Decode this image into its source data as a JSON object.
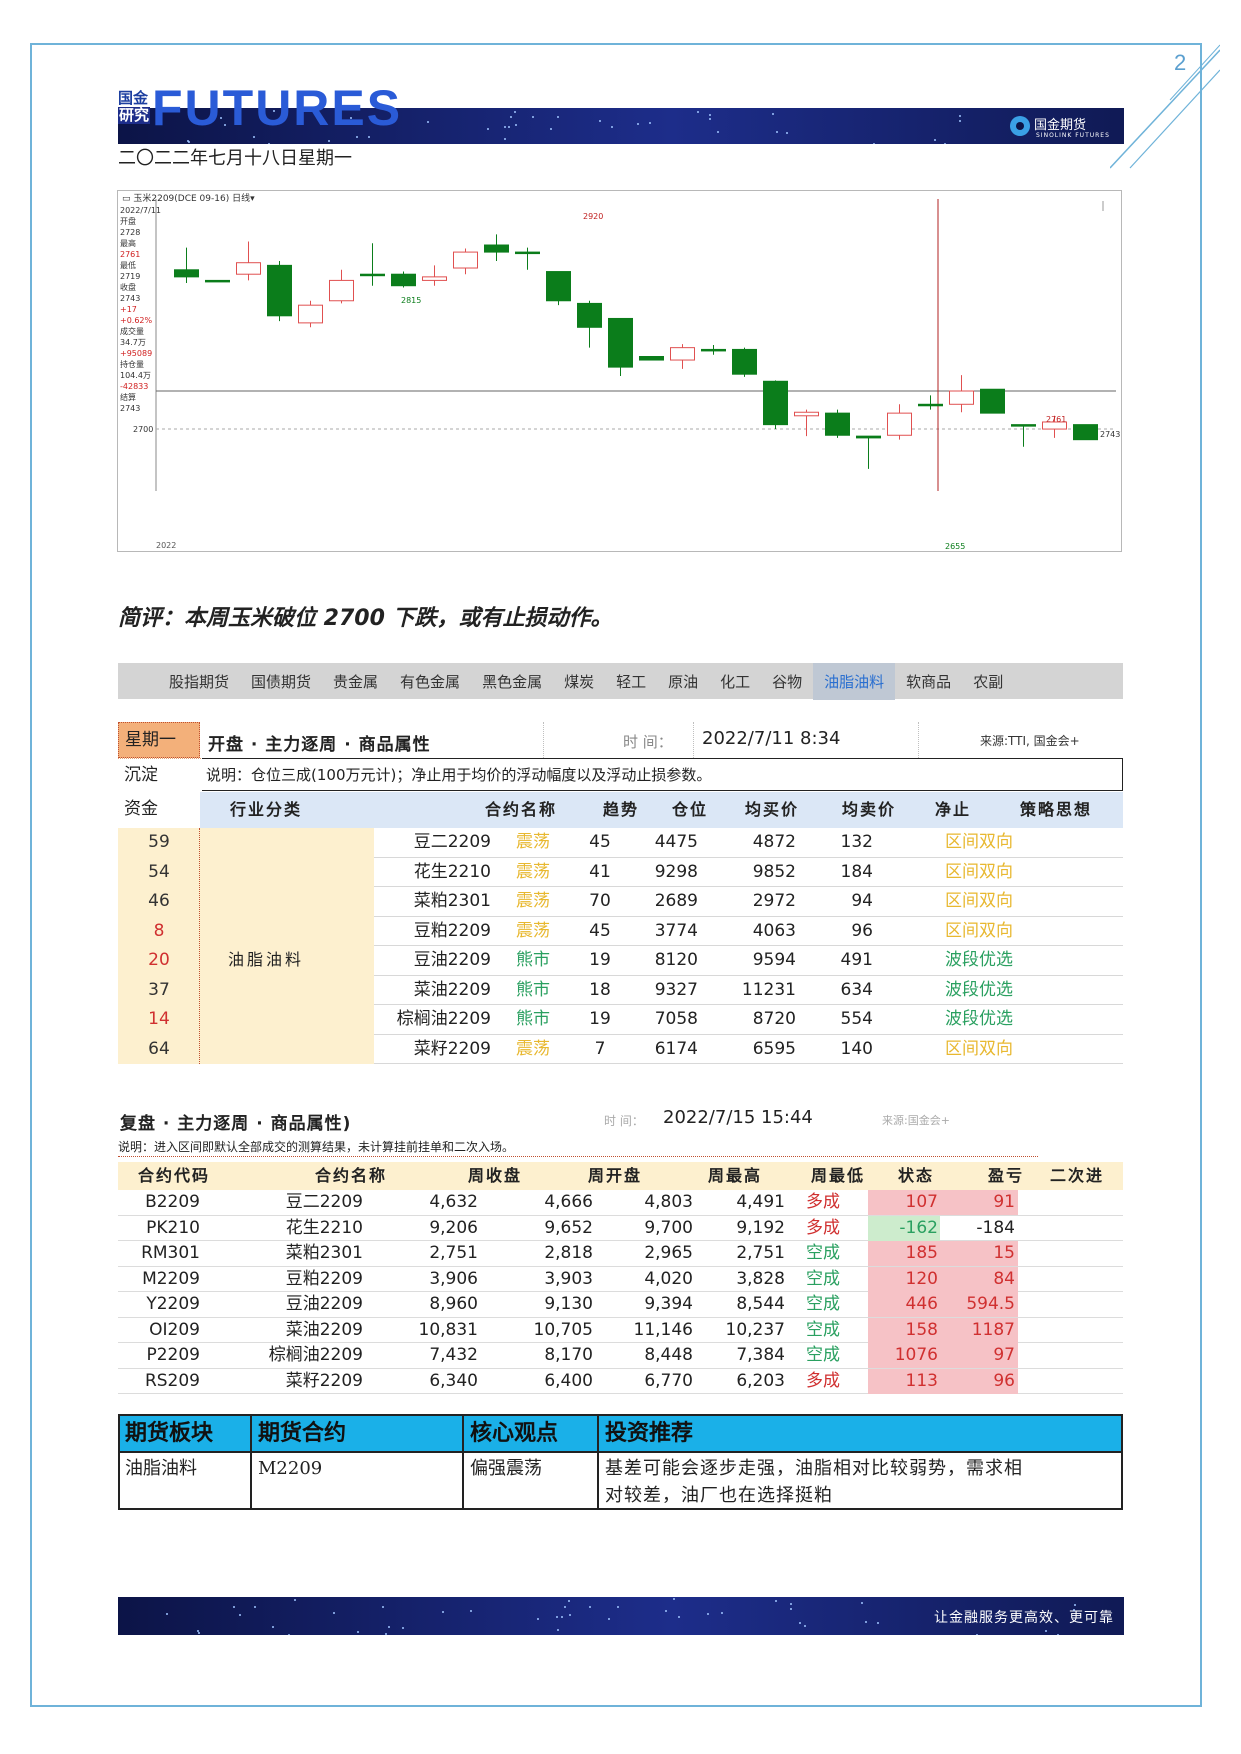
{
  "page": {
    "number": "2"
  },
  "header": {
    "brand_cn_line1": "国金",
    "brand_cn_line2": "研究",
    "brand_en": "FUTURES",
    "logo_text": "国金期货",
    "logo_sub": "SINOLINK FUTURES",
    "date": "二〇二二年七月十八日星期一"
  },
  "chart": {
    "toolbar": "▭ 玉米2209(DCE 09-16)  日线▾",
    "side_panel": [
      "2022/7/11",
      "开盘",
      "2728",
      "最高",
      "2761",
      "最低",
      "2719",
      "收盘",
      "2743",
      "+17",
      "+0.62%",
      "成交量",
      "34.7万",
      "+95089",
      "持仓量",
      "104.4万",
      "-42833",
      "结算",
      "2743"
    ],
    "axis_label_2700": "2700",
    "labels": {
      "high_label": "2920",
      "low_label_1": "2815",
      "low_label_2": "2655",
      "peak_label_2": "2761",
      "right_price": "2743",
      "bottom_left": "2022"
    }
  },
  "chart_data": {
    "type": "candlestick",
    "xlabel": "",
    "ylabel": "",
    "ylim": [
      2630,
      2960
    ],
    "reference_lines": [
      2743,
      2700
    ],
    "series": [
      {
        "o": 2880,
        "c": 2872,
        "h": 2905,
        "l": 2865
      },
      {
        "o": 2868,
        "c": 2868,
        "h": 2868,
        "l": 2868
      },
      {
        "o": 2875,
        "c": 2888,
        "h": 2912,
        "l": 2868
      },
      {
        "o": 2885,
        "c": 2828,
        "h": 2890,
        "l": 2822
      },
      {
        "o": 2820,
        "c": 2840,
        "h": 2845,
        "l": 2815
      },
      {
        "o": 2845,
        "c": 2868,
        "h": 2880,
        "l": 2842
      },
      {
        "o": 2875,
        "c": 2875,
        "h": 2910,
        "l": 2862
      },
      {
        "o": 2875,
        "c": 2862,
        "h": 2878,
        "l": 2860
      },
      {
        "o": 2868,
        "c": 2872,
        "h": 2885,
        "l": 2862
      },
      {
        "o": 2882,
        "c": 2900,
        "h": 2904,
        "l": 2875
      },
      {
        "o": 2908,
        "c": 2900,
        "h": 2920,
        "l": 2890
      },
      {
        "o": 2900,
        "c": 2900,
        "h": 2905,
        "l": 2880
      },
      {
        "o": 2878,
        "c": 2845,
        "h": 2878,
        "l": 2840
      },
      {
        "o": 2842,
        "c": 2815,
        "h": 2845,
        "l": 2792
      },
      {
        "o": 2825,
        "c": 2770,
        "h": 2825,
        "l": 2760
      },
      {
        "o": 2782,
        "c": 2778,
        "h": 2782,
        "l": 2778
      },
      {
        "o": 2778,
        "c": 2792,
        "h": 2796,
        "l": 2768
      },
      {
        "o": 2790,
        "c": 2790,
        "h": 2795,
        "l": 2784
      },
      {
        "o": 2790,
        "c": 2762,
        "h": 2792,
        "l": 2759
      },
      {
        "o": 2754,
        "c": 2705,
        "h": 2755,
        "l": 2700
      },
      {
        "o": 2715,
        "c": 2719,
        "h": 2722,
        "l": 2692
      },
      {
        "o": 2718,
        "c": 2693,
        "h": 2722,
        "l": 2690
      },
      {
        "o": 2692,
        "c": 2690,
        "h": 2692,
        "l": 2655
      },
      {
        "o": 2693,
        "c": 2718,
        "h": 2728,
        "l": 2688
      },
      {
        "o": 2728,
        "c": 2728,
        "h": 2738,
        "l": 2722
      },
      {
        "o": 2728,
        "c": 2743,
        "h": 2761,
        "l": 2719
      },
      {
        "o": 2745,
        "c": 2718,
        "h": 2745,
        "l": 2718
      },
      {
        "o": 2705,
        "c": 2705,
        "h": 2705,
        "l": 2680
      },
      {
        "o": 2700,
        "c": 2708,
        "h": 2715,
        "l": 2690
      },
      {
        "o": 2705,
        "c": 2688,
        "h": 2705,
        "l": 2688
      }
    ]
  },
  "comment": "简评：本周玉米破位 2700 下跌，或有止损动作。",
  "tabs": [
    "股指期货",
    "国债期货",
    "贵金属",
    "有色金属",
    "黑色金属",
    "煤炭",
    "轻工",
    "原油",
    "化工",
    "谷物",
    "油脂油料",
    "软商品",
    "农副"
  ],
  "active_tab": "油脂油料",
  "table1": {
    "week_label": "星期一",
    "title": "开盘 · 主力逐周 · 商品属性",
    "time_label": "时 间：",
    "time": "2022/7/11 8:34",
    "source": "来源:TTI, 国金会+",
    "side_label1": "沉淀",
    "side_label2": "资金",
    "note": "说明：仓位三成(100万元计)；净止用于均价的浮动幅度以及浮动止损参数。",
    "columns": [
      "行业分类",
      "合约名称",
      "趋势",
      "仓位",
      "均买价",
      "均卖价",
      "净止",
      "策略思想"
    ],
    "industry": "油脂油料",
    "rows": [
      {
        "funds": "59",
        "name": "豆二2209",
        "trend": "震荡",
        "pos": "45",
        "buy": "4475",
        "sell": "4872",
        "stop": "132",
        "strategy": "区间双向"
      },
      {
        "funds": "54",
        "name": "花生2210",
        "trend": "震荡",
        "pos": "41",
        "buy": "9298",
        "sell": "9852",
        "stop": "184",
        "strategy": "区间双向"
      },
      {
        "funds": "46",
        "name": "菜粕2301",
        "trend": "震荡",
        "pos": "70",
        "buy": "2689",
        "sell": "2972",
        "stop": "94",
        "strategy": "区间双向"
      },
      {
        "funds": "8",
        "name": "豆粕2209",
        "trend": "震荡",
        "pos": "45",
        "buy": "3774",
        "sell": "4063",
        "stop": "96",
        "strategy": "区间双向"
      },
      {
        "funds": "20",
        "name": "豆油2209",
        "trend": "熊市",
        "pos": "19",
        "buy": "8120",
        "sell": "9594",
        "stop": "491",
        "strategy": "波段优选"
      },
      {
        "funds": "37",
        "name": "菜油2209",
        "trend": "熊市",
        "pos": "18",
        "buy": "9327",
        "sell": "11231",
        "stop": "634",
        "strategy": "波段优选"
      },
      {
        "funds": "14",
        "name": "棕榈油2209",
        "trend": "熊市",
        "pos": "19",
        "buy": "7058",
        "sell": "8720",
        "stop": "554",
        "strategy": "波段优选"
      },
      {
        "funds": "64",
        "name": "菜籽2209",
        "trend": "震荡",
        "pos": "7",
        "buy": "6174",
        "sell": "6595",
        "stop": "140",
        "strategy": "区间双向"
      }
    ],
    "colors": {
      "range": "#e8b830",
      "bear": "#2aa060",
      "funds_red": "#d03030",
      "funds_dark": "#333333"
    }
  },
  "table2": {
    "title": "复盘 · 主力逐周 · 商品属性)",
    "time_label": "时 间：",
    "time": "2022/7/15 15:44",
    "source": "来源:国金会+",
    "note": "说明：进入区间即默认全部成交的测算结果，未计算挂前挂单和二次入场。",
    "columns": [
      "合约代码",
      "合约名称",
      "周收盘",
      "周开盘",
      "周最高",
      "周最低",
      "状态",
      "盈亏",
      "二次进"
    ],
    "rows": [
      {
        "code": "B2209",
        "name": "豆二2209",
        "close": "4,632",
        "open": "4,666",
        "high": "4,803",
        "low": "4,491",
        "status": "多成",
        "pnl": "107",
        "second": "91"
      },
      {
        "code": "PK210",
        "name": "花生2210",
        "close": "9,206",
        "open": "9,652",
        "high": "9,700",
        "low": "9,192",
        "status": "多成",
        "pnl": "-162",
        "second": "-184"
      },
      {
        "code": "RM301",
        "name": "菜粕2301",
        "close": "2,751",
        "open": "2,818",
        "high": "2,965",
        "low": "2,751",
        "status": "空成",
        "pnl": "185",
        "second": "15"
      },
      {
        "code": "M2209",
        "name": "豆粕2209",
        "close": "3,906",
        "open": "3,903",
        "high": "4,020",
        "low": "3,828",
        "status": "空成",
        "pnl": "120",
        "second": "84"
      },
      {
        "code": "Y2209",
        "name": "豆油2209",
        "close": "8,960",
        "open": "9,130",
        "high": "9,394",
        "low": "8,544",
        "status": "空成",
        "pnl": "446",
        "second": "594.5"
      },
      {
        "code": "OI209",
        "name": "菜油2209",
        "close": "10,831",
        "open": "10,705",
        "high": "11,146",
        "low": "10,237",
        "status": "空成",
        "pnl": "158",
        "second": "1187"
      },
      {
        "code": "P2209",
        "name": "棕榈油2209",
        "close": "7,432",
        "open": "8,170",
        "high": "8,448",
        "low": "7,384",
        "status": "空成",
        "pnl": "1076",
        "second": "97"
      },
      {
        "code": "RS209",
        "name": "菜籽2209",
        "close": "6,340",
        "open": "6,400",
        "high": "6,770",
        "low": "6,203",
        "status": "多成",
        "pnl": "113",
        "second": "96"
      }
    ],
    "colors": {
      "long": "#d03030",
      "short": "#2aa060",
      "pos_bg": "#f6c2c6",
      "neg_bg": "#cdeccd"
    }
  },
  "table3": {
    "headers": [
      "期货板块",
      "期货合约",
      "核心观点",
      "投资推荐"
    ],
    "sector": "油脂油料",
    "contract": "M2209",
    "view": "偏强震荡",
    "recommend_line1": "基差可能会逐步走强，油脂相对比较弱势，需求相",
    "recommend_line2": "对较差，油厂也在选择挺粕"
  },
  "footer": {
    "slogan": "让金融服务更高效、更可靠"
  }
}
